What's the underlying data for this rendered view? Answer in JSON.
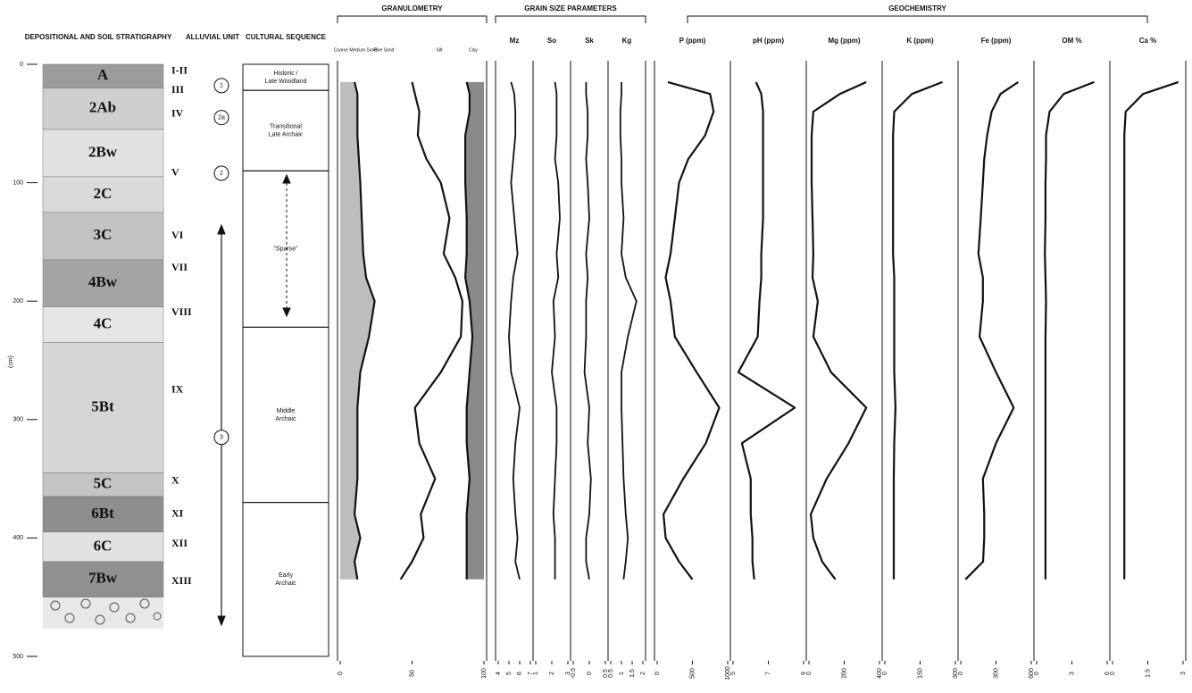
{
  "depth_axis": {
    "label": "(cm)",
    "ylim": [
      0,
      500
    ],
    "yticks": [
      0,
      100,
      200,
      300,
      400,
      500
    ]
  },
  "depths": [
    15,
    25,
    40,
    60,
    80,
    100,
    130,
    160,
    180,
    200,
    230,
    260,
    290,
    320,
    350,
    380,
    400,
    420,
    435
  ],
  "stratigraphy": {
    "title": "DEPOSITIONAL AND SOIL STRATIGRAPHY",
    "horizons": [
      {
        "label": "A",
        "top": 0,
        "bottom": 20,
        "color": "#9c9c9c"
      },
      {
        "label": "2Ab",
        "top": 20,
        "bottom": 55,
        "color": "#cfcfcf"
      },
      {
        "label": "2Bw",
        "top": 55,
        "bottom": 95,
        "color": "#e2e2e2"
      },
      {
        "label": "2C",
        "top": 95,
        "bottom": 125,
        "color": "#dadada"
      },
      {
        "label": "3C",
        "top": 125,
        "bottom": 165,
        "color": "#c2c2c2"
      },
      {
        "label": "4Bw",
        "top": 165,
        "bottom": 205,
        "color": "#a4a4a4"
      },
      {
        "label": "4C",
        "top": 205,
        "bottom": 235,
        "color": "#e6e6e6"
      },
      {
        "label": "5Bt",
        "top": 235,
        "bottom": 345,
        "color": "#d6d6d6"
      },
      {
        "label": "5C",
        "top": 345,
        "bottom": 365,
        "color": "#c4c4c4"
      },
      {
        "label": "6Bt",
        "top": 365,
        "bottom": 395,
        "color": "#8e8e8e"
      },
      {
        "label": "6C",
        "top": 395,
        "bottom": 420,
        "color": "#e2e2e2"
      },
      {
        "label": "7Bw",
        "top": 420,
        "bottom": 450,
        "color": "#909090"
      }
    ],
    "numerals": [
      {
        "label": "I-II",
        "depth": 6
      },
      {
        "label": "III",
        "depth": 22
      },
      {
        "label": "IV",
        "depth": 42
      },
      {
        "label": "V",
        "depth": 92
      },
      {
        "label": "VI",
        "depth": 145
      },
      {
        "label": "VII",
        "depth": 172
      },
      {
        "label": "VIII",
        "depth": 210
      },
      {
        "label": "IX",
        "depth": 275
      },
      {
        "label": "X",
        "depth": 352
      },
      {
        "label": "XI",
        "depth": 380
      },
      {
        "label": "XII",
        "depth": 405
      },
      {
        "label": "XIII",
        "depth": 437
      }
    ]
  },
  "alluvial_units": {
    "title": "ALLUVIAL UNIT",
    "items": [
      {
        "label": "1",
        "depth": 18
      },
      {
        "label": "2a",
        "depth": 45
      },
      {
        "label": "2",
        "depth": 92
      },
      {
        "label": "3",
        "depth": 315
      }
    ]
  },
  "cultural_sequence": {
    "title": "CULTURAL SEQUENCE",
    "periods": [
      {
        "lines": [
          "Historic /",
          "Late Woodland"
        ],
        "top": 0,
        "bottom": 22
      },
      {
        "lines": [
          "Transitional",
          "Late Archaic"
        ],
        "top": 22,
        "bottom": 90
      },
      {
        "lines": [
          "\"Sparse\""
        ],
        "top": 90,
        "bottom": 222
      },
      {
        "lines": [
          "Middle",
          "Archaic"
        ],
        "top": 222,
        "bottom": 370
      },
      {
        "lines": [
          "Early",
          "Archaic"
        ],
        "top": 370,
        "bottom": 500
      }
    ]
  },
  "granulometry": {
    "title": "GRANULOMETRY",
    "columns": [
      "Coarse Medium Sand",
      "Fine Sand",
      "Silt",
      "Clay"
    ],
    "xlim": [
      0,
      100
    ],
    "xticks": [
      0,
      50,
      100
    ],
    "curves": [
      [
        10,
        12,
        12,
        12,
        13,
        14,
        15,
        16,
        18,
        24,
        20,
        14,
        12,
        12,
        12,
        10,
        14,
        10,
        12
      ],
      [
        50,
        52,
        55,
        54,
        60,
        70,
        76,
        72,
        80,
        85,
        84,
        70,
        52,
        55,
        66,
        56,
        58,
        50,
        42
      ],
      [
        88,
        90,
        90,
        87,
        87,
        87,
        88,
        88,
        87,
        90,
        92,
        90,
        88,
        88,
        90,
        88,
        88,
        88,
        88
      ]
    ]
  },
  "grain_size": {
    "title": "GRAIN SIZE PARAMETERS",
    "panels": [
      {
        "name": "Mz",
        "xlim": [
          4,
          7
        ],
        "xticks": [
          4,
          5,
          6,
          7
        ],
        "values": [
          5.2,
          5.5,
          5.6,
          5.6,
          5.4,
          5.2,
          5.5,
          5.8,
          5.4,
          5.2,
          5.0,
          5.2,
          6.0,
          5.6,
          5.4,
          5.6,
          5.8,
          5.6,
          6.0
        ]
      },
      {
        "name": "So",
        "xlim": [
          1,
          3
        ],
        "xticks": [
          1,
          2,
          3
        ],
        "values": [
          2.2,
          2.3,
          2.3,
          2.3,
          2.2,
          2.4,
          2.5,
          2.3,
          2.4,
          2.1,
          2.2,
          2.0,
          2.3,
          2.3,
          2.2,
          2.1,
          2.2,
          2.2,
          2.2
        ]
      },
      {
        "name": "Sk",
        "xlim": [
          -0.5,
          0.5
        ],
        "xticks": [
          -0.5,
          0,
          0.5
        ],
        "values": [
          -0.1,
          -0.1,
          -0.05,
          -0.05,
          -0.1,
          -0.05,
          0,
          -0.1,
          -0.05,
          -0.1,
          -0.1,
          -0.15,
          0,
          -0.05,
          0.05,
          0,
          -0.1,
          -0.1,
          0
        ]
      },
      {
        "name": "Kg",
        "xlim": [
          0.5,
          2
        ],
        "xticks": [
          0.5,
          1,
          1.5,
          2
        ],
        "values": [
          1.0,
          1.0,
          0.95,
          0.95,
          1.0,
          1.0,
          1.1,
          1.0,
          1.2,
          1.7,
          1.3,
          1.0,
          1.0,
          1.05,
          1.1,
          1.2,
          1.3,
          1.2,
          1.1
        ]
      }
    ]
  },
  "geochemistry": {
    "title": "GEOCHEMISTRY",
    "panels": [
      {
        "name": "P (ppm)",
        "xlim": [
          0,
          1000
        ],
        "xticks": [
          0,
          500,
          1000
        ],
        "values": [
          150,
          750,
          800,
          680,
          440,
          310,
          250,
          190,
          120,
          190,
          250,
          560,
          880,
          690,
          370,
          90,
          120,
          310,
          500
        ]
      },
      {
        "name": "pH (ppm)",
        "xlim": [
          5,
          9
        ],
        "xticks": [
          5,
          7,
          9
        ],
        "values": [
          6.3,
          6.6,
          6.7,
          6.7,
          6.7,
          6.7,
          6.7,
          6.6,
          6.6,
          6.5,
          6.4,
          5.3,
          8.5,
          5.5,
          6.0,
          6.0,
          6.1,
          6.1,
          6.2
        ]
      },
      {
        "name": "Mg (ppm)",
        "xlim": [
          0,
          400
        ],
        "xticks": [
          0,
          200,
          400
        ],
        "values": [
          325,
          175,
          25,
          15,
          15,
          15,
          20,
          25,
          20,
          50,
          25,
          125,
          325,
          225,
          100,
          10,
          25,
          75,
          150
        ]
      },
      {
        "name": "K (ppm)",
        "xlim": [
          0,
          300
        ],
        "xticks": [
          0,
          150,
          300
        ],
        "values": [
          245,
          115,
          40,
          35,
          35,
          35,
          35,
          35,
          40,
          40,
          40,
          40,
          45,
          40,
          38,
          38,
          38,
          38,
          38
        ]
      },
      {
        "name": "Fe (ppm)",
        "xlim": [
          0,
          600
        ],
        "xticks": [
          0,
          300,
          600
        ],
        "values": [
          488,
          338,
          263,
          225,
          200,
          188,
          170,
          150,
          188,
          188,
          160,
          300,
          450,
          300,
          188,
          200,
          200,
          190,
          40
        ]
      },
      {
        "name": "OM %",
        "xlim": [
          0,
          6
        ],
        "xticks": [
          0,
          3,
          6
        ],
        "values": [
          4.9,
          2.3,
          1.1,
          0.8,
          0.8,
          0.75,
          0.75,
          0.7,
          0.75,
          0.8,
          0.75,
          0.75,
          0.75,
          0.75,
          0.75,
          0.75,
          0.75,
          0.75,
          0.75
        ]
      },
      {
        "name": "Ca %",
        "xlim": [
          0,
          3
        ],
        "xticks": [
          0,
          1.5,
          3
        ],
        "values": [
          2.8,
          1.3,
          0.56,
          0.5,
          0.5,
          0.5,
          0.5,
          0.5,
          0.5,
          0.5,
          0.5,
          0.5,
          0.5,
          0.5,
          0.5,
          0.5,
          0.5,
          0.5,
          0.5
        ]
      }
    ]
  }
}
